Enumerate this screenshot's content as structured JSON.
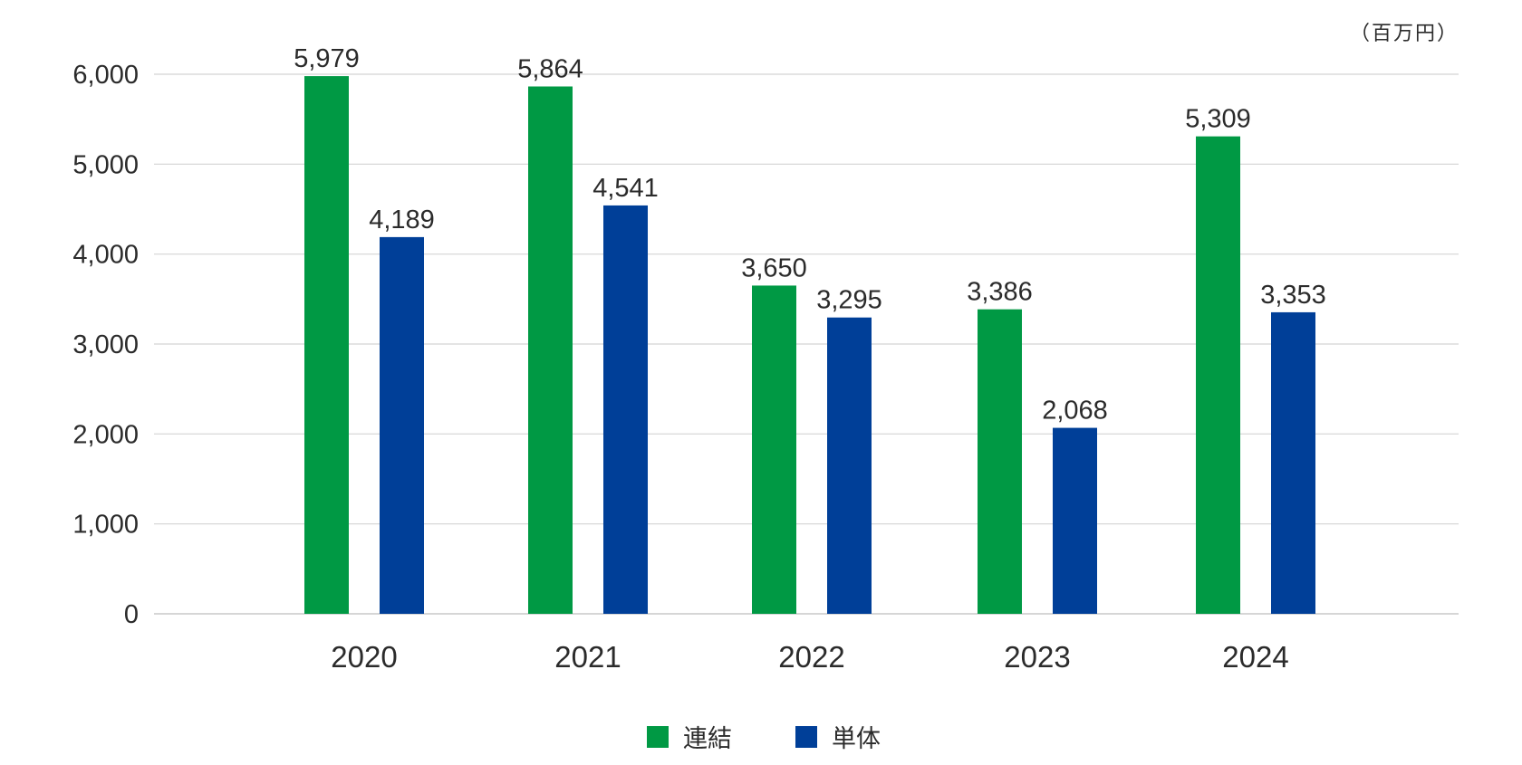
{
  "chart_data": {
    "type": "bar",
    "title": "",
    "unit_label": "（百万円）",
    "xlabel": "",
    "ylabel": "",
    "ylim": [
      0,
      6000
    ],
    "yticks": [
      "0",
      "1,000",
      "2,000",
      "3,000",
      "4,000",
      "5,000",
      "6,000"
    ],
    "ytick_values": [
      0,
      1000,
      2000,
      3000,
      4000,
      5000,
      6000
    ],
    "categories": [
      "2020",
      "2021",
      "2022",
      "2023",
      "2024"
    ],
    "series": [
      {
        "name": "連結",
        "color": "#009944",
        "values": [
          5979,
          5864,
          3650,
          3386,
          5309
        ],
        "labels": [
          "5,979",
          "5,864",
          "3,650",
          "3,386",
          "5,309"
        ]
      },
      {
        "name": "単体",
        "color": "#003f98",
        "values": [
          4189,
          4541,
          3295,
          2068,
          3353
        ],
        "labels": [
          "4,189",
          "4,541",
          "3,295",
          "2,068",
          "3,353"
        ]
      }
    ],
    "grid": true,
    "legend_position": "bottom-center"
  }
}
